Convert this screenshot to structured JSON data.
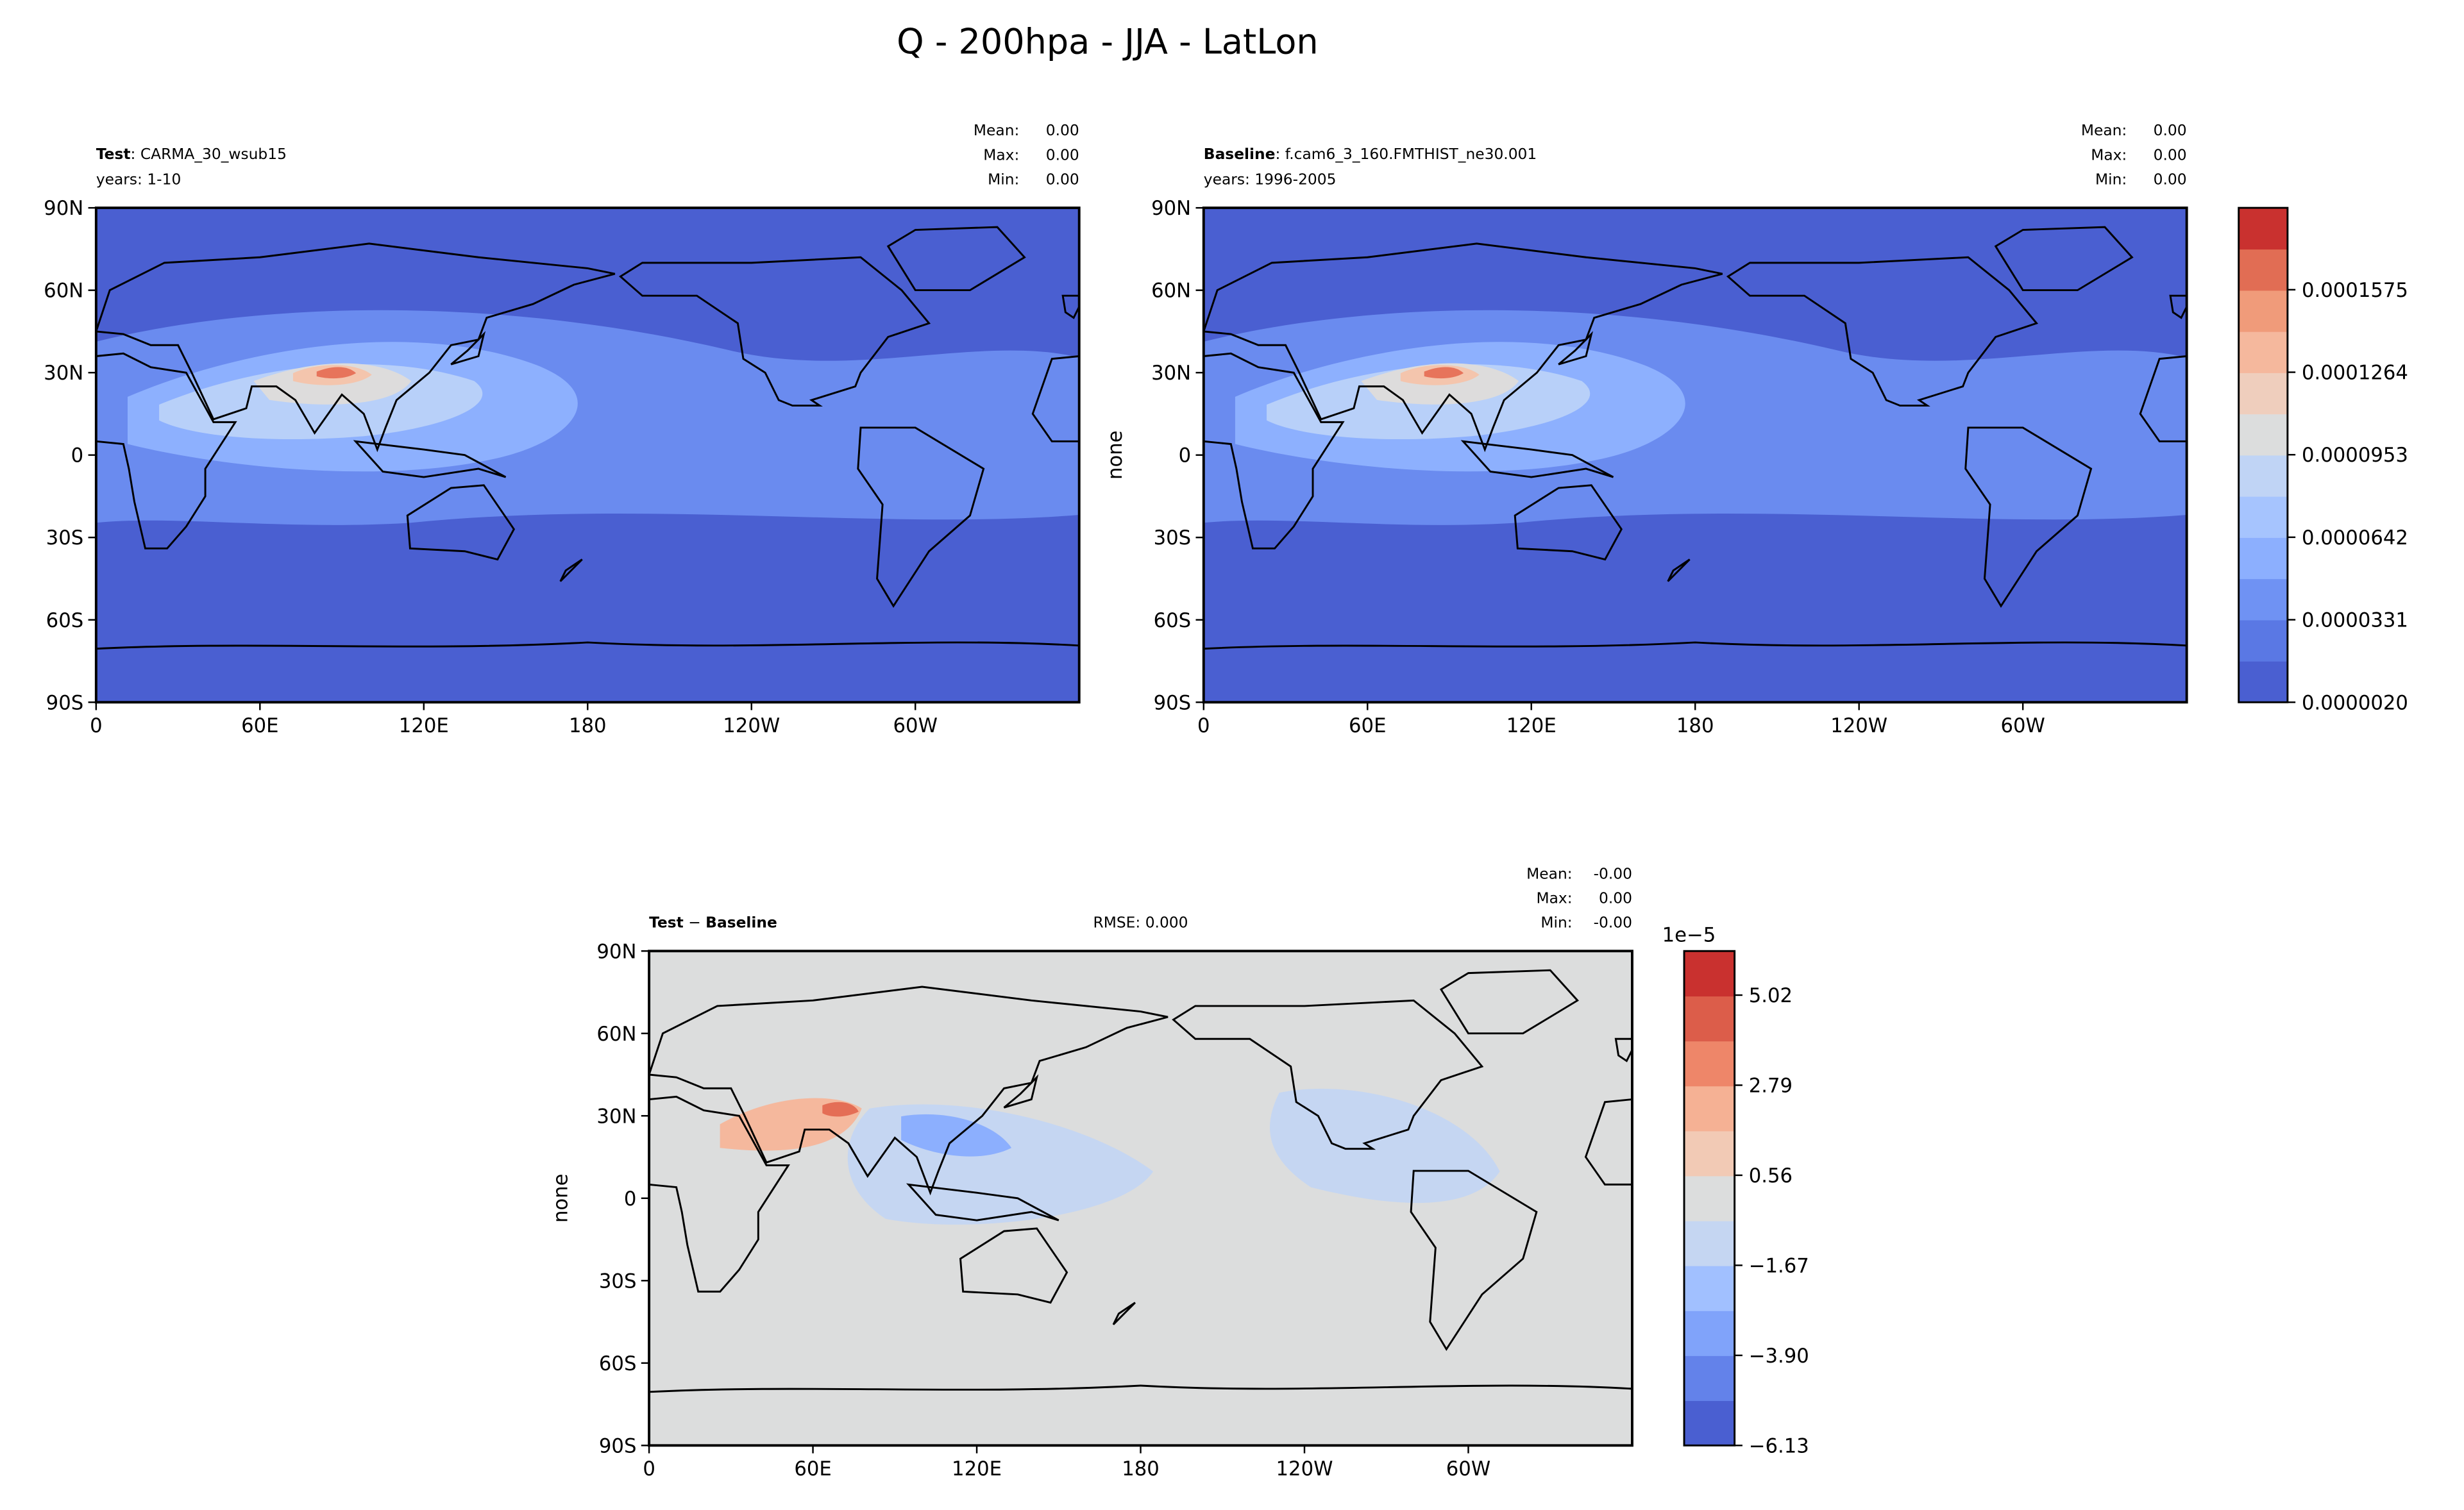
{
  "title": "Q - 200hpa - JJA - LatLon",
  "panels": [
    {
      "title_bold": "Test",
      "title": ": CARMA_30_wsub15",
      "years": "years: 1-10",
      "stats": [
        {
          "label": "Mean:",
          "value": "0.00"
        },
        {
          "label": "Max:",
          "value": "0.00"
        },
        {
          "label": "Min:",
          "value": "0.00"
        }
      ]
    },
    {
      "title_bold": "Baseline",
      "title": ": f.cam6_3_160.FMTHIST_ne30.001",
      "years": "years: 1996-2005",
      "ylabel": "none",
      "stats": [
        {
          "label": "Mean:",
          "value": "0.00"
        },
        {
          "label": "Max:",
          "value": "0.00"
        },
        {
          "label": "Min:",
          "value": "0.00"
        }
      ]
    },
    {
      "title_bold": "Test",
      "title": " − ",
      "title_bold2": "Baseline",
      "rmse": "RMSE: 0.000",
      "ylabel": "none",
      "stats": [
        {
          "label": "Mean:",
          "value": "-0.00"
        },
        {
          "label": "Max:",
          "value": "0.00"
        },
        {
          "label": "Min:",
          "value": "-0.00"
        }
      ]
    }
  ],
  "lat_ticks": [
    "90N",
    "60N",
    "30N",
    "0",
    "30S",
    "60S",
    "90S"
  ],
  "lon_ticks": [
    "0",
    "60E",
    "120E",
    "180",
    "120W",
    "60W"
  ],
  "colorbar_main": {
    "ticks": [
      "0.0000020",
      "0.0000331",
      "0.0000642",
      "0.0000953",
      "0.0001264",
      "0.0001575"
    ]
  },
  "colorbar_diff": {
    "offset": "1e−5",
    "ticks": [
      "−6.13",
      "−3.90",
      "−1.67",
      "0.56",
      "2.79",
      "5.02"
    ]
  }
}
